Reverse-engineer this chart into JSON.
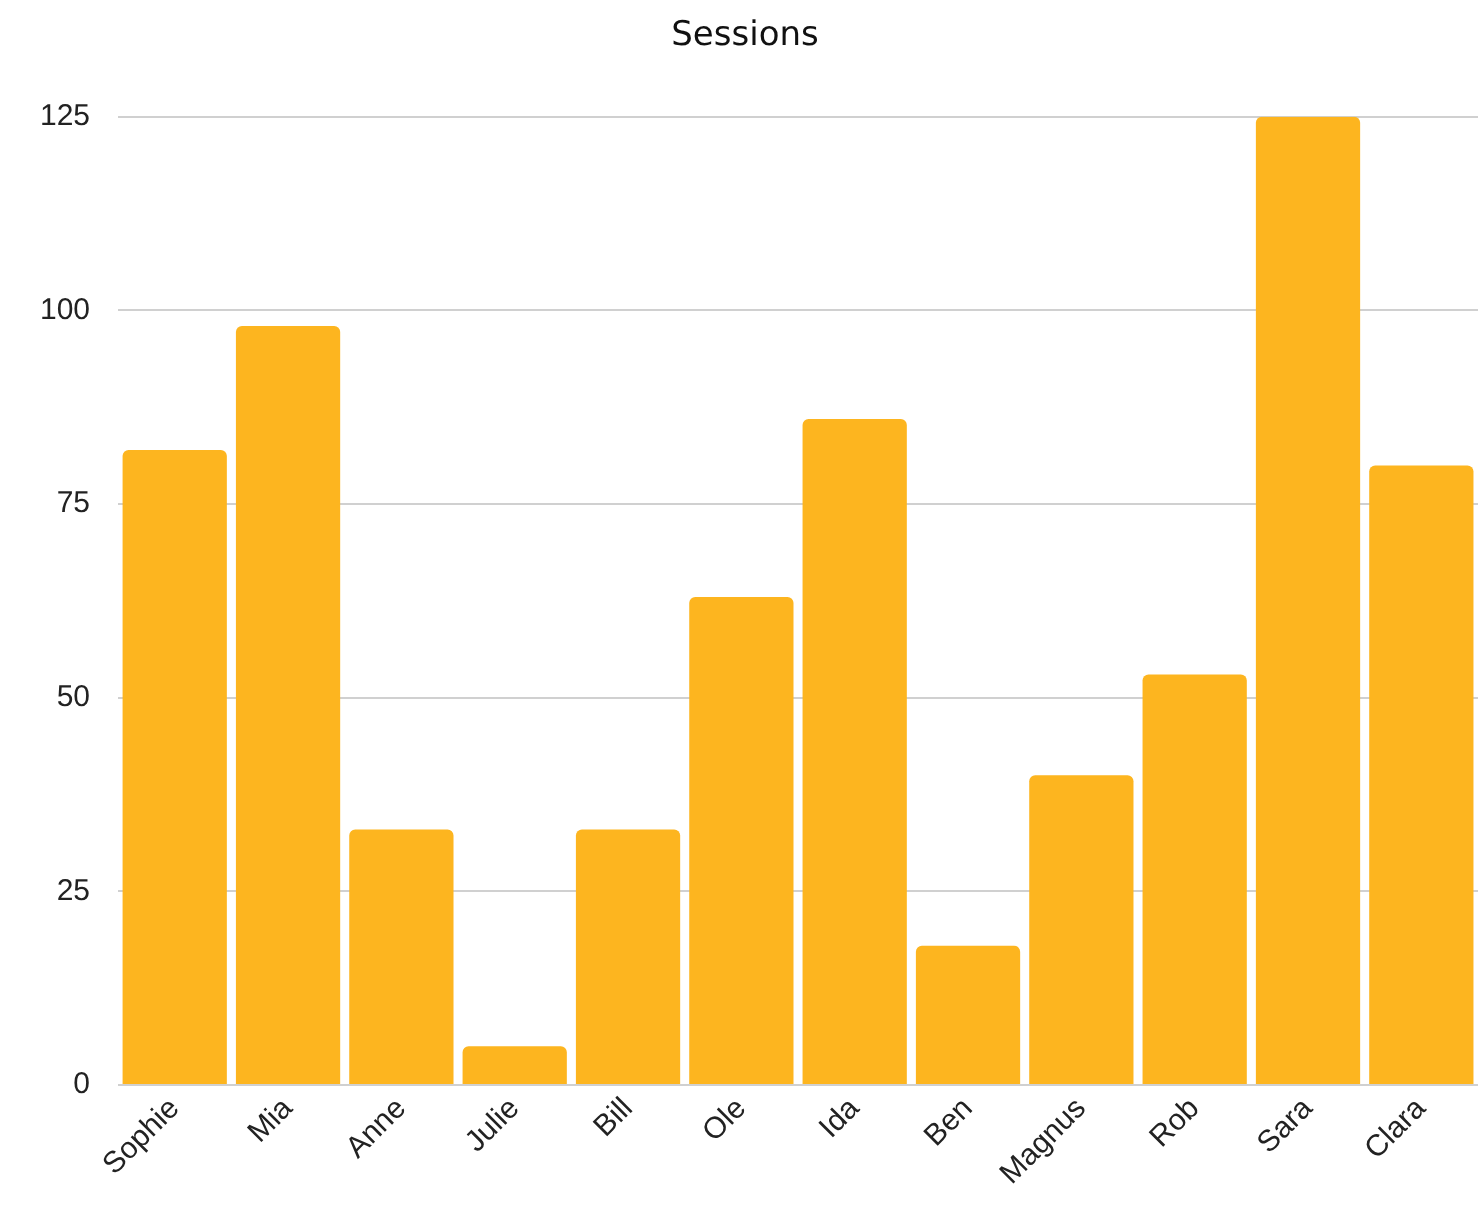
{
  "chart_data": {
    "type": "bar",
    "title": "Sessions",
    "categories": [
      "Sophie",
      "Mia",
      "Anne",
      "Julie",
      "Bill",
      "Ole",
      "Ida",
      "Ben",
      "Magnus",
      "Rob",
      "Sara",
      "Clara"
    ],
    "values": [
      82,
      98,
      33,
      5,
      33,
      63,
      86,
      18,
      40,
      53,
      125,
      80
    ],
    "color": "#fdb51f",
    "ylim": [
      0,
      125
    ],
    "yticks": [
      0,
      25,
      50,
      75,
      100,
      125
    ],
    "grid": "y",
    "legend": false
  }
}
